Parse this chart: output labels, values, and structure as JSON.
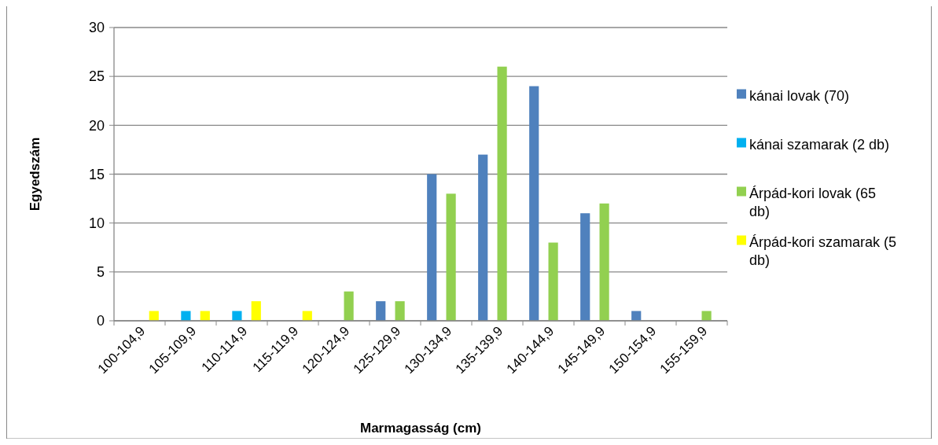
{
  "chart_data": {
    "type": "bar",
    "xlabel": "Marmagasság (cm)",
    "ylabel": "Egyedszám",
    "categories": [
      "100-104,9",
      "105-109,9",
      "110-114,9",
      "115-119,9",
      "120-124,9",
      "125-129,9",
      "130-134,9",
      "135-139,9",
      "140-144,9",
      "145-149,9",
      "150-154,9",
      "155-159,9"
    ],
    "series": [
      {
        "name": "kánai lovak (70)",
        "color": "#4f81bd",
        "values": [
          0,
          0,
          0,
          0,
          0,
          2,
          15,
          17,
          24,
          11,
          1,
          0
        ]
      },
      {
        "name": "kánai szamarak (2 db)",
        "color": "#00b0f0",
        "values": [
          0,
          1,
          1,
          0,
          0,
          0,
          0,
          0,
          0,
          0,
          0,
          0
        ]
      },
      {
        "name": "Árpád-kori lovak (65 db)",
        "color": "#92d050",
        "values": [
          0,
          0,
          0,
          0,
          3,
          2,
          13,
          26,
          8,
          12,
          0,
          1
        ]
      },
      {
        "name": "Árpád-kori szamarak (5 db)",
        "color": "#ffff00",
        "values": [
          1,
          1,
          2,
          1,
          0,
          0,
          0,
          0,
          0,
          0,
          0,
          0
        ]
      }
    ],
    "ylim": [
      0,
      30
    ],
    "yticks": [
      0,
      5,
      10,
      15,
      20,
      25,
      30
    ],
    "grid": "y",
    "legend": "right"
  }
}
